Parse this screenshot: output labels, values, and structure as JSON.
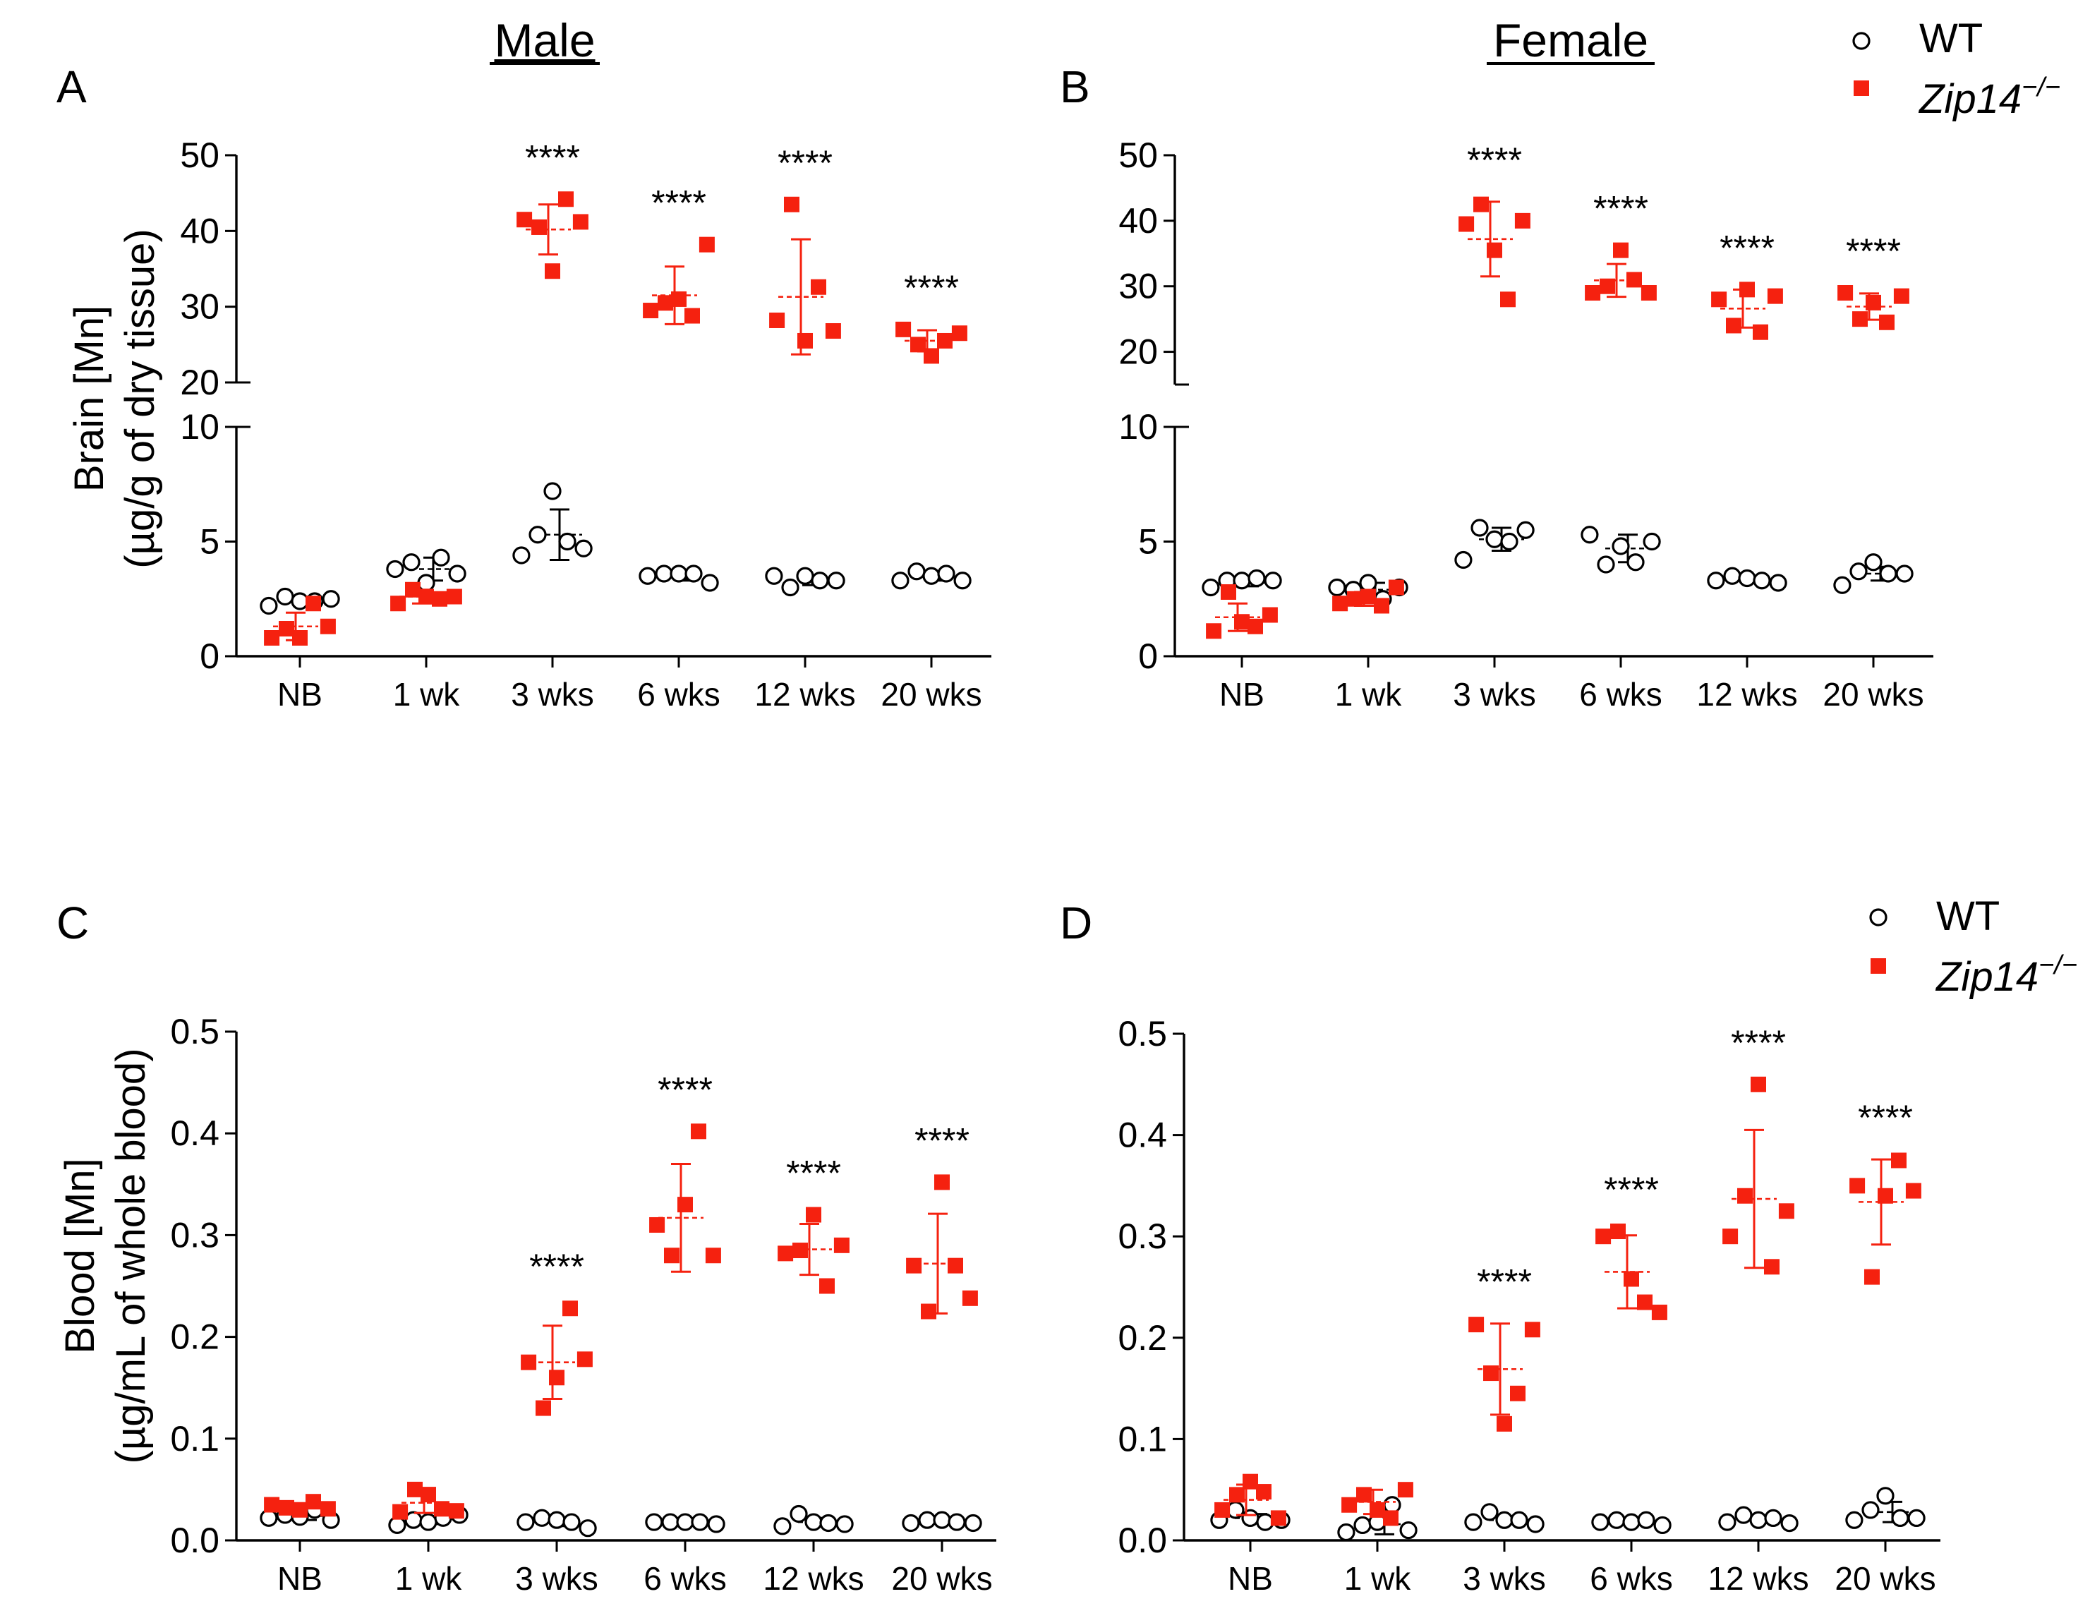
{
  "figure": {
    "column_titles": [
      "Male",
      "Female"
    ],
    "legend": {
      "wt_label": "WT",
      "ko_label_base": "Zip14",
      "ko_label_superscript": "−/−"
    },
    "colors": {
      "wt_fill": "#ffffff",
      "wt_stroke": "#000000",
      "ko": "#f5210f"
    },
    "significance_mark": "****"
  },
  "chart_data": [
    {
      "panel": "A",
      "type": "scatter",
      "title": "Male",
      "ylabel": "Brain [Mn]",
      "ylabel_unit": "(µg/g of dry tissue)",
      "categories": [
        "NB",
        "1 wk",
        "3 wks",
        "6 wks",
        "12 wks",
        "20 wks"
      ],
      "y_axis_broken": true,
      "lower_range": [
        0,
        10
      ],
      "lower_ticks": [
        0,
        5,
        10
      ],
      "upper_range": [
        20,
        50
      ],
      "upper_ticks": [
        20,
        30,
        40,
        50
      ],
      "significance": [
        false,
        false,
        true,
        true,
        true,
        true
      ],
      "series": [
        {
          "name": "WT",
          "marker": "open-circle",
          "points": [
            [
              2.2,
              2.6,
              2.4,
              2.4,
              2.5
            ],
            [
              3.8,
              4.1,
              3.2,
              4.3,
              3.6
            ],
            [
              4.4,
              5.3,
              7.2,
              5.0,
              4.7
            ],
            [
              3.5,
              3.6,
              3.6,
              3.6,
              3.2
            ],
            [
              3.5,
              3.0,
              3.5,
              3.3,
              3.3
            ],
            [
              3.3,
              3.7,
              3.5,
              3.6,
              3.3
            ]
          ],
          "mean": [
            2.4,
            3.8,
            5.3,
            3.5,
            3.3,
            3.5
          ],
          "sd": [
            0.2,
            0.5,
            1.1,
            0.2,
            0.2,
            0.2
          ]
        },
        {
          "name": "Zip14−/−",
          "marker": "filled-square",
          "points": [
            [
              0.8,
              1.2,
              0.8,
              2.3,
              1.3
            ],
            [
              2.3,
              2.9,
              2.6,
              2.5,
              2.6
            ],
            [
              41.5,
              40.5,
              34.7,
              44.2,
              41.2
            ],
            [
              29.5,
              30.5,
              31.0,
              28.8,
              38.2
            ],
            [
              28.2,
              43.5,
              25.5,
              32.6,
              26.8
            ],
            [
              27.0,
              25.0,
              23.5,
              25.5,
              26.5
            ]
          ],
          "mean": [
            1.3,
            2.6,
            40.2,
            31.5,
            31.3,
            25.5
          ],
          "sd": [
            0.6,
            0.3,
            3.3,
            3.8,
            7.6,
            1.4
          ]
        }
      ]
    },
    {
      "panel": "B",
      "type": "scatter",
      "title": "Female",
      "ylabel": "",
      "categories": [
        "NB",
        "1 wk",
        "3 wks",
        "6 wks",
        "12 wks",
        "20 wks"
      ],
      "y_axis_broken": true,
      "lower_range": [
        0,
        10
      ],
      "lower_ticks": [
        0,
        5,
        10
      ],
      "upper_range": [
        15,
        50
      ],
      "upper_ticks": [
        20,
        30,
        40,
        50
      ],
      "significance": [
        false,
        false,
        true,
        true,
        true,
        true
      ],
      "series": [
        {
          "name": "WT",
          "marker": "open-circle",
          "points": [
            [
              3.0,
              3.3,
              3.3,
              3.4,
              3.3
            ],
            [
              3.0,
              2.9,
              3.2,
              2.5,
              3.0
            ],
            [
              4.2,
              5.6,
              5.1,
              5.0,
              5.5
            ],
            [
              5.3,
              4.0,
              4.8,
              4.1,
              5.0
            ],
            [
              3.3,
              3.5,
              3.4,
              3.3,
              3.2
            ],
            [
              3.1,
              3.7,
              4.1,
              3.6,
              3.6
            ]
          ],
          "mean": [
            3.2,
            2.9,
            5.1,
            4.7,
            3.4,
            3.6
          ],
          "sd": [
            0.15,
            0.3,
            0.5,
            0.6,
            0.1,
            0.3
          ]
        },
        {
          "name": "Zip14−/−",
          "marker": "filled-square",
          "points": [
            [
              1.1,
              2.8,
              1.5,
              1.3,
              1.8
            ],
            [
              2.3,
              2.5,
              2.6,
              2.2,
              3.0
            ],
            [
              39.5,
              42.5,
              35.5,
              28.0,
              40.0
            ],
            [
              29.0,
              30.0,
              35.5,
              31.0,
              29.0
            ],
            [
              28.0,
              24.0,
              29.5,
              23.0,
              28.5
            ],
            [
              29.0,
              25.0,
              27.5,
              24.5,
              28.5
            ]
          ],
          "mean": [
            1.7,
            2.5,
            37.2,
            30.9,
            26.6,
            26.9
          ],
          "sd": [
            0.6,
            0.3,
            5.7,
            2.5,
            2.9,
            2.0
          ]
        }
      ]
    },
    {
      "panel": "C",
      "type": "scatter",
      "title": "",
      "ylabel": "Blood [Mn]",
      "ylabel_unit": "(µg/mL of whole blood)",
      "categories": [
        "NB",
        "1 wk",
        "3 wks",
        "6 wks",
        "12 wks",
        "20 wks"
      ],
      "ylim": [
        0,
        0.5
      ],
      "yticks": [
        0.0,
        0.1,
        0.2,
        0.3,
        0.4,
        0.5
      ],
      "significance": [
        false,
        false,
        true,
        true,
        true,
        true
      ],
      "series": [
        {
          "name": "WT",
          "marker": "open-circle",
          "points": [
            [
              0.022,
              0.025,
              0.023,
              0.03,
              0.02
            ],
            [
              0.015,
              0.02,
              0.018,
              0.022,
              0.025
            ],
            [
              0.018,
              0.022,
              0.02,
              0.018,
              0.012
            ],
            [
              0.018,
              0.018,
              0.018,
              0.018,
              0.016
            ],
            [
              0.014,
              0.026,
              0.018,
              0.017,
              0.016
            ],
            [
              0.017,
              0.02,
              0.02,
              0.018,
              0.017
            ]
          ],
          "mean": [
            0.024,
            0.02,
            0.018,
            0.018,
            0.018,
            0.018
          ],
          "sd": [
            0.004,
            0.004,
            0.004,
            0.001,
            0.004,
            0.001
          ]
        },
        {
          "name": "Zip14−/−",
          "marker": "filled-square",
          "points": [
            [
              0.035,
              0.032,
              0.03,
              0.038,
              0.031
            ],
            [
              0.028,
              0.05,
              0.045,
              0.031,
              0.029
            ],
            [
              0.175,
              0.13,
              0.16,
              0.228,
              0.178
            ],
            [
              0.31,
              0.28,
              0.33,
              0.402,
              0.28
            ],
            [
              0.282,
              0.285,
              0.32,
              0.25,
              0.29
            ],
            [
              0.27,
              0.225,
              0.352,
              0.27,
              0.238
            ]
          ],
          "mean": [
            0.033,
            0.037,
            0.175,
            0.317,
            0.286,
            0.272
          ],
          "sd": [
            0.003,
            0.01,
            0.036,
            0.053,
            0.025,
            0.049
          ]
        }
      ]
    },
    {
      "panel": "D",
      "type": "scatter",
      "title": "",
      "ylabel": "",
      "categories": [
        "NB",
        "1 wk",
        "3 wks",
        "6 wks",
        "12 wks",
        "20 wks"
      ],
      "ylim": [
        0,
        0.5
      ],
      "yticks": [
        0.0,
        0.1,
        0.2,
        0.3,
        0.4,
        0.5
      ],
      "significance": [
        false,
        false,
        true,
        true,
        true,
        true
      ],
      "series": [
        {
          "name": "WT",
          "marker": "open-circle",
          "points": [
            [
              0.02,
              0.03,
              0.022,
              0.018,
              0.02
            ],
            [
              0.008,
              0.015,
              0.018,
              0.035,
              0.01
            ],
            [
              0.018,
              0.028,
              0.02,
              0.02,
              0.016
            ],
            [
              0.018,
              0.02,
              0.018,
              0.02,
              0.015
            ],
            [
              0.018,
              0.025,
              0.02,
              0.022,
              0.017
            ],
            [
              0.02,
              0.03,
              0.044,
              0.022,
              0.022
            ]
          ],
          "mean": [
            0.022,
            0.016,
            0.02,
            0.018,
            0.02,
            0.028
          ],
          "sd": [
            0.004,
            0.01,
            0.004,
            0.002,
            0.003,
            0.01
          ]
        },
        {
          "name": "Zip14−/−",
          "marker": "filled-square",
          "points": [
            [
              0.03,
              0.045,
              0.058,
              0.048,
              0.022
            ],
            [
              0.035,
              0.045,
              0.03,
              0.022,
              0.05
            ],
            [
              0.213,
              0.165,
              0.115,
              0.145,
              0.208
            ],
            [
              0.3,
              0.305,
              0.258,
              0.235,
              0.225
            ],
            [
              0.3,
              0.34,
              0.45,
              0.27,
              0.325
            ],
            [
              0.35,
              0.26,
              0.34,
              0.375,
              0.345
            ]
          ],
          "mean": [
            0.04,
            0.038,
            0.169,
            0.265,
            0.337,
            0.334
          ],
          "sd": [
            0.015,
            0.012,
            0.045,
            0.036,
            0.068,
            0.042
          ]
        }
      ]
    }
  ]
}
